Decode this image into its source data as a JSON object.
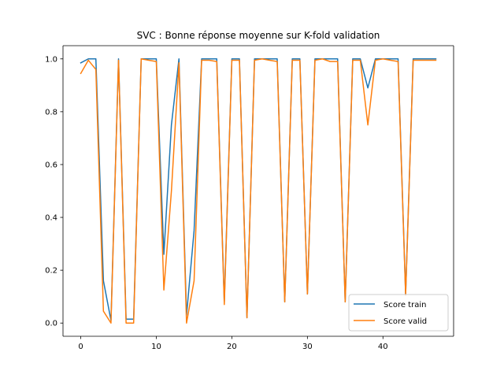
{
  "chart_data": {
    "type": "line",
    "title": "SVC : Bonne réponse moyenne sur K-fold validation",
    "xlabel": "",
    "ylabel": "",
    "x": [
      0,
      1,
      2,
      3,
      4,
      5,
      6,
      7,
      8,
      9,
      10,
      11,
      12,
      13,
      14,
      15,
      16,
      17,
      18,
      19,
      20,
      21,
      22,
      23,
      24,
      25,
      26,
      27,
      28,
      29,
      30,
      31,
      32,
      33,
      34,
      35,
      36,
      37,
      38,
      39,
      40,
      41,
      42,
      43,
      44,
      45,
      46,
      47
    ],
    "xlim": [
      -2.35,
      49.35
    ],
    "ylim": [
      -0.05,
      1.05
    ],
    "xticks": [
      0,
      10,
      20,
      30,
      40
    ],
    "xtick_labels": [
      "0",
      "10",
      "20",
      "30",
      "40"
    ],
    "yticks": [
      0.0,
      0.2,
      0.4,
      0.6,
      0.8,
      1.0
    ],
    "ytick_labels": [
      "0.0",
      "0.2",
      "0.4",
      "0.6",
      "0.8",
      "1.0"
    ],
    "grid": false,
    "legend_position": "lower-right",
    "series": [
      {
        "name": "Score train",
        "color": "#1f77b4",
        "values": [
          0.985,
          1.0,
          1.0,
          0.16,
          0.01,
          1.0,
          0.015,
          0.015,
          1.0,
          1.0,
          1.0,
          0.26,
          0.75,
          1.0,
          0.03,
          0.35,
          1.0,
          1.0,
          1.0,
          0.08,
          1.0,
          1.0,
          0.02,
          1.0,
          1.0,
          1.0,
          1.0,
          0.08,
          1.0,
          1.0,
          0.11,
          1.0,
          1.0,
          1.0,
          1.0,
          0.08,
          1.0,
          1.0,
          0.89,
          1.0,
          1.0,
          1.0,
          1.0,
          0.11,
          1.0,
          1.0,
          1.0,
          1.0
        ]
      },
      {
        "name": "Score valid",
        "color": "#ff7f0e",
        "values": [
          0.945,
          0.995,
          0.96,
          0.045,
          0.0,
          0.995,
          0.0,
          0.0,
          1.0,
          0.995,
          0.99,
          0.125,
          0.5,
          0.985,
          0.0,
          0.16,
          0.995,
          0.995,
          0.99,
          0.07,
          0.995,
          0.995,
          0.02,
          0.995,
          1.0,
          0.995,
          0.99,
          0.08,
          0.995,
          0.995,
          0.11,
          0.995,
          1.0,
          0.99,
          0.99,
          0.08,
          0.995,
          0.995,
          0.75,
          0.995,
          1.0,
          0.995,
          0.99,
          0.105,
          0.995,
          0.995,
          0.995,
          0.995
        ]
      }
    ]
  }
}
